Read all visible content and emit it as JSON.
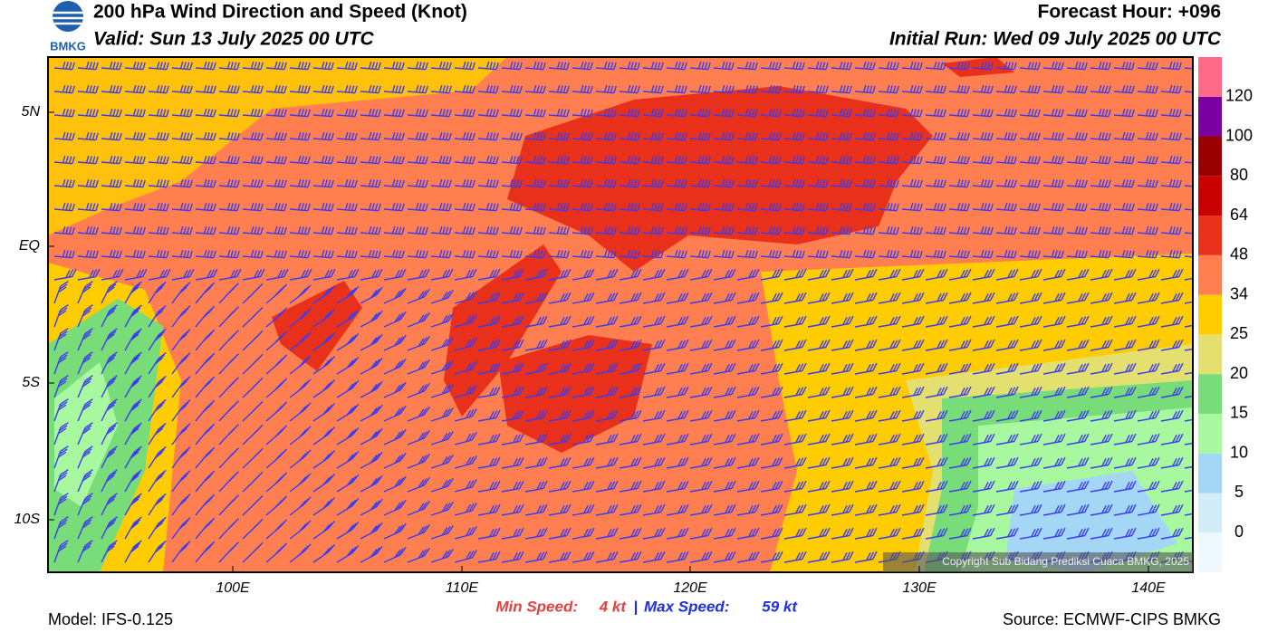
{
  "header": {
    "title": "200 hPa Wind Direction and Speed (Knot)",
    "valid": "Valid: Sun 13 July 2025 00 UTC",
    "forecast_hour": "Forecast Hour: +096",
    "initial_run": "Initial Run: Wed 09 July 2025 00 UTC",
    "logo": "BMKG"
  },
  "map": {
    "lat_labels": [
      "5N",
      "EQ",
      "5S",
      "10S"
    ],
    "lon_labels": [
      "100E",
      "110E",
      "120E",
      "130E",
      "140E"
    ],
    "copyright": "Copyright Sub Bidang Prediksi Cuaca BMKG, 2025"
  },
  "colorbar": {
    "levels": [
      0,
      5,
      10,
      15,
      20,
      25,
      34,
      48,
      64,
      80,
      100,
      120
    ],
    "colors": [
      "#f0f8ff",
      "#d2ecf8",
      "#a4d6f6",
      "#a8f8a0",
      "#78dc78",
      "#e4e070",
      "#ffcc00",
      "#ff7f50",
      "#e8301a",
      "#c80000",
      "#9a0000",
      "#7a00a0",
      "#ff6a88"
    ]
  },
  "footer": {
    "model": "Model: IFS-0.125",
    "source": "Source: ECMWF-CIPS BMKG",
    "min_label": "Min Speed:",
    "min_value": "4 kt",
    "separator": "|",
    "max_label": "Max Speed:",
    "max_value": "59 kt"
  }
}
